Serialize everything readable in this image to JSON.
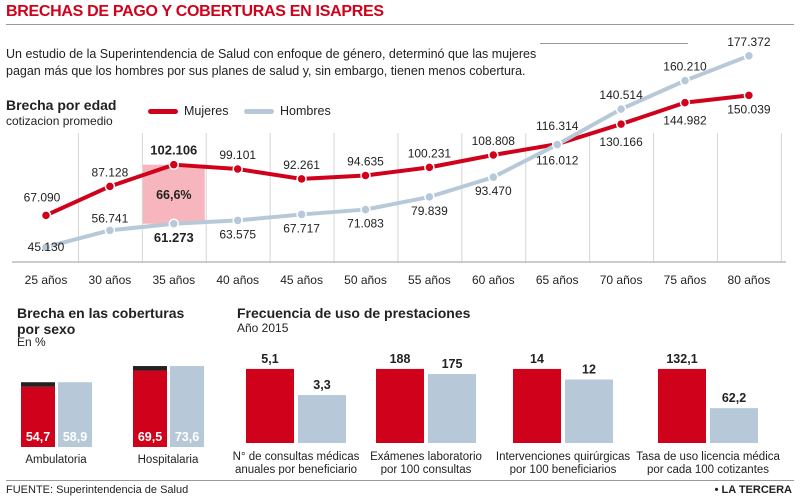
{
  "header": {
    "title": "BRECHAS DE PAGO Y COBERTURAS EN ISAPRES",
    "intro": "Un estudio de la Superintendencia de Salud con enfoque de género, determinó que las mujeres pagan más que los hombres por sus planes de salud y, sin embargo, tienen menos cobertura."
  },
  "colors": {
    "mujeres": "#d0021b",
    "hombres": "#b7c9d8",
    "highlight": "#f7b6bd",
    "dark": "#222222"
  },
  "footer": {
    "source": "FUENTE: Superintendencia de Salud",
    "brand": "• LA TERCERA"
  },
  "chart_data": [
    {
      "type": "line",
      "title": "Brecha por edad",
      "subtitle": "cotizacion promedio",
      "categories": [
        "25 años",
        "30 años",
        "35 años",
        "40 años",
        "45 años",
        "50 años",
        "55 años",
        "60 años",
        "65 años",
        "70 años",
        "75 años",
        "80 años"
      ],
      "series": [
        {
          "name": "Mujeres",
          "values": [
            67090,
            87128,
            102106,
            99101,
            92261,
            94635,
            100231,
            108808,
            116314,
            130166,
            144982,
            150039
          ],
          "labels": [
            "67.090",
            "87.128",
            "102.106",
            "99.101",
            "92.261",
            "94.635",
            "100.231",
            "108.808",
            "116.314",
            "130.166",
            "144.982",
            "150.039"
          ]
        },
        {
          "name": "Hombres",
          "values": [
            45130,
            56741,
            61273,
            63575,
            67717,
            71083,
            79839,
            93470,
            116012,
            140514,
            160210,
            177372
          ],
          "labels": [
            "45.130",
            "56.741",
            "61.273",
            "63.575",
            "67.717",
            "71.083",
            "79.839",
            "93.470",
            "116.012",
            "140.514",
            "160.210",
            "177.372"
          ]
        }
      ],
      "annotation": {
        "category": "35 años",
        "text": "66,6%"
      },
      "grid": "vertical"
    },
    {
      "type": "bar",
      "title": "Brecha en las coberturas por sexo",
      "subtitle": "En %",
      "categories": [
        "Ambulatoria",
        "Hospitalaria"
      ],
      "series": [
        {
          "name": "Mujeres",
          "values": [
            54.7,
            69.5
          ],
          "labels": [
            "54,7",
            "69,5"
          ]
        },
        {
          "name": "Hombres",
          "values": [
            58.9,
            73.6
          ],
          "labels": [
            "58,9",
            "73,6"
          ]
        }
      ]
    },
    {
      "type": "bar",
      "title": "Frecuencia de uso de prestaciones",
      "subtitle": "Año 2015",
      "categories": [
        [
          "N° de consultas médicas",
          "anuales por beneficiario"
        ],
        [
          "Exámenes laboratorio",
          "por 100 consultas"
        ],
        [
          "Intervenciones quirúrgicas",
          "por 100 beneficiarios"
        ],
        [
          "Tasa de uso licencia médica",
          "por cada 100 cotizantes"
        ]
      ],
      "series": [
        {
          "name": "Mujeres",
          "values": [
            5.1,
            188,
            14,
            132.1
          ],
          "labels": [
            "5,1",
            "188",
            "14",
            "132,1"
          ]
        },
        {
          "name": "Hombres",
          "values": [
            3.3,
            175,
            12,
            62.2
          ],
          "labels": [
            "3,3",
            "175",
            "12",
            "62,2"
          ]
        }
      ]
    }
  ]
}
